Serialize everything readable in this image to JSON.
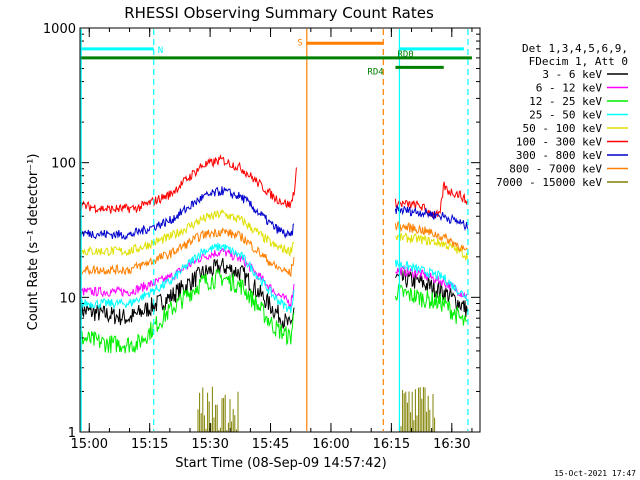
{
  "chart_data": {
    "type": "line",
    "title": "RHESSI Observing Summary Count Rates",
    "xlabel": "Start Time (08-Sep-09 14:57:42)",
    "ylabel": "Count Rate (s⁻¹ detector⁻¹)",
    "yscale": "log",
    "xlim": [
      "14:57:42",
      "16:37:00"
    ],
    "ylim": [
      1,
      1000
    ],
    "x_ticks": [
      "15:00",
      "15:15",
      "15:30",
      "15:45",
      "16:00",
      "16:15",
      "16:30"
    ],
    "y_ticks": [
      "1",
      "10",
      "100",
      "1000"
    ],
    "footer_date": "15-Oct-2021 17:47",
    "legend": {
      "placement": "right",
      "header": [
        "Det 1,3,4,5,6,9,",
        "FDecim 1, Att 0"
      ]
    },
    "series": [
      {
        "name": "3 - 6 keV",
        "color": "#000000",
        "segments": [
          {
            "x": [
              "14:58",
              "15:10",
              "15:20",
              "15:28",
              "15:33",
              "15:38",
              "15:46",
              "15:50",
              "15:51"
            ],
            "y": [
              8,
              7,
              10,
              15,
              17,
              15,
              8,
              6,
              9
            ]
          },
          {
            "x": [
              "16:16",
              "16:22",
              "16:28",
              "16:32",
              "16:34"
            ],
            "y": [
              14,
              13,
              11,
              9,
              8
            ]
          }
        ]
      },
      {
        "name": "6 - 12 keV",
        "color": "#ff00ff",
        "segments": [
          {
            "x": [
              "14:58",
              "15:10",
              "15:20",
              "15:28",
              "15:33",
              "15:38",
              "15:46",
              "15:50",
              "15:51"
            ],
            "y": [
              11,
              11,
              14,
              20,
              22,
              19,
              11,
              9,
              13
            ]
          },
          {
            "x": [
              "16:16",
              "16:22",
              "16:28",
              "16:32",
              "16:34"
            ],
            "y": [
              16,
              15,
              13,
              11,
              10
            ]
          }
        ]
      },
      {
        "name": "12 - 25 keV",
        "color": "#00ee00",
        "segments": [
          {
            "x": [
              "14:58",
              "15:05",
              "15:12",
              "15:20",
              "15:28",
              "15:33",
              "15:38",
              "15:46",
              "15:50",
              "15:51"
            ],
            "y": [
              5,
              4.5,
              4.5,
              8,
              13,
              14,
              12,
              6,
              5,
              8
            ]
          },
          {
            "x": [
              "16:16",
              "16:22",
              "16:28",
              "16:32",
              "16:34"
            ],
            "y": [
              11,
              10,
              9,
              7,
              6
            ]
          }
        ]
      },
      {
        "name": "25 - 50 keV",
        "color": "#00ffff",
        "segments": [
          {
            "x": [
              "14:58",
              "15:10",
              "15:20",
              "15:28",
              "15:33",
              "15:38",
              "15:46",
              "15:50",
              "15:51"
            ],
            "y": [
              9,
              9,
              13,
              22,
              24,
              20,
              10,
              8,
              12
            ]
          },
          {
            "x": [
              "16:16",
              "16:22",
              "16:28",
              "16:32",
              "16:34"
            ],
            "y": [
              18,
              16,
              14,
              11,
              10
            ]
          }
        ]
      },
      {
        "name": "50 - 100 keV",
        "color": "#e0e000",
        "segments": [
          {
            "x": [
              "14:58",
              "15:10",
              "15:20",
              "15:28",
              "15:33",
              "15:38",
              "15:46",
              "15:50",
              "15:51"
            ],
            "y": [
              22,
              22,
              28,
              38,
              42,
              37,
              24,
              22,
              28
            ]
          },
          {
            "x": [
              "16:16",
              "16:22",
              "16:28",
              "16:32",
              "16:34"
            ],
            "y": [
              28,
              27,
              25,
              22,
              20
            ]
          }
        ]
      },
      {
        "name": "100 - 300 keV",
        "color": "#ff0000",
        "segments": [
          {
            "x": [
              "14:58",
              "15:05",
              "15:12",
              "15:20",
              "15:28",
              "15:33",
              "15:38",
              "15:46",
              "15:50",
              "15:51",
              "15:51.5"
            ],
            "y": [
              48,
              45,
              46,
              58,
              95,
              105,
              90,
              55,
              48,
              65,
              92
            ]
          },
          {
            "x": [
              "16:16",
              "16:22",
              "16:25",
              "16:27",
              "16:28",
              "16:29",
              "16:32",
              "16:34"
            ],
            "y": [
              50,
              48,
              42,
              40,
              68,
              62,
              58,
              50
            ]
          }
        ]
      },
      {
        "name": "300 - 800 keV",
        "color": "#0000cc",
        "segments": [
          {
            "x": [
              "14:58",
              "15:10",
              "15:20",
              "15:28",
              "15:33",
              "15:38",
              "15:46",
              "15:50",
              "15:51"
            ],
            "y": [
              30,
              29,
              37,
              55,
              62,
              55,
              33,
              28,
              35
            ]
          },
          {
            "x": [
              "16:16",
              "16:22",
              "16:28",
              "16:32",
              "16:34"
            ],
            "y": [
              45,
              43,
              40,
              36,
              33
            ]
          }
        ]
      },
      {
        "name": "800 - 7000 keV",
        "color": "#ff8000",
        "segments": [
          {
            "x": [
              "14:58",
              "15:10",
              "15:20",
              "15:28",
              "15:33",
              "15:38",
              "15:46",
              "15:50",
              "15:51"
            ],
            "y": [
              16,
              16,
              21,
              29,
              31,
              28,
              17,
              15,
              21
            ]
          },
          {
            "x": [
              "16:16",
              "16:22",
              "16:28",
              "16:32",
              "16:34"
            ],
            "y": [
              34,
              32,
              28,
              24,
              21
            ]
          }
        ]
      },
      {
        "name": "7000 - 15000 keV",
        "color": "#808000",
        "segments": [
          {
            "bars": true,
            "x": [
              "15:27",
              "15:37"
            ],
            "y": [
              2
            ]
          },
          {
            "bars": true,
            "x": [
              "16:17",
              "16:26"
            ],
            "y": [
              2
            ]
          }
        ]
      }
    ],
    "annotations": {
      "lines": [
        {
          "label": "N",
          "color": "#00ffff",
          "x": [
            "14:58",
            "15:16"
          ],
          "y": 700
        },
        {
          "label": "S",
          "color": "#ff8000",
          "x": [
            "15:54",
            "16:13"
          ],
          "y": 770
        },
        {
          "label": "",
          "color": "#00ffff",
          "x": [
            "16:17",
            "16:33"
          ],
          "y": 700
        },
        {
          "label": "RD0",
          "color": "#008000",
          "x": [
            "14:58",
            "16:35"
          ],
          "y": 600
        },
        {
          "label": "RD4",
          "color": "#008000",
          "x": [
            "16:16",
            "16:28"
          ],
          "y": 510
        }
      ],
      "vlines": [
        {
          "x": "14:58",
          "color": "#00ffff",
          "style": "solid"
        },
        {
          "x": "15:16",
          "color": "#00ffff",
          "style": "dashed"
        },
        {
          "x": "15:54",
          "color": "#ff8000",
          "style": "solid"
        },
        {
          "x": "16:13",
          "color": "#ff8000",
          "style": "dashed"
        },
        {
          "x": "16:17",
          "color": "#00ffff",
          "style": "solid"
        },
        {
          "x": "16:34",
          "color": "#00ffff",
          "style": "dashed"
        }
      ]
    }
  }
}
